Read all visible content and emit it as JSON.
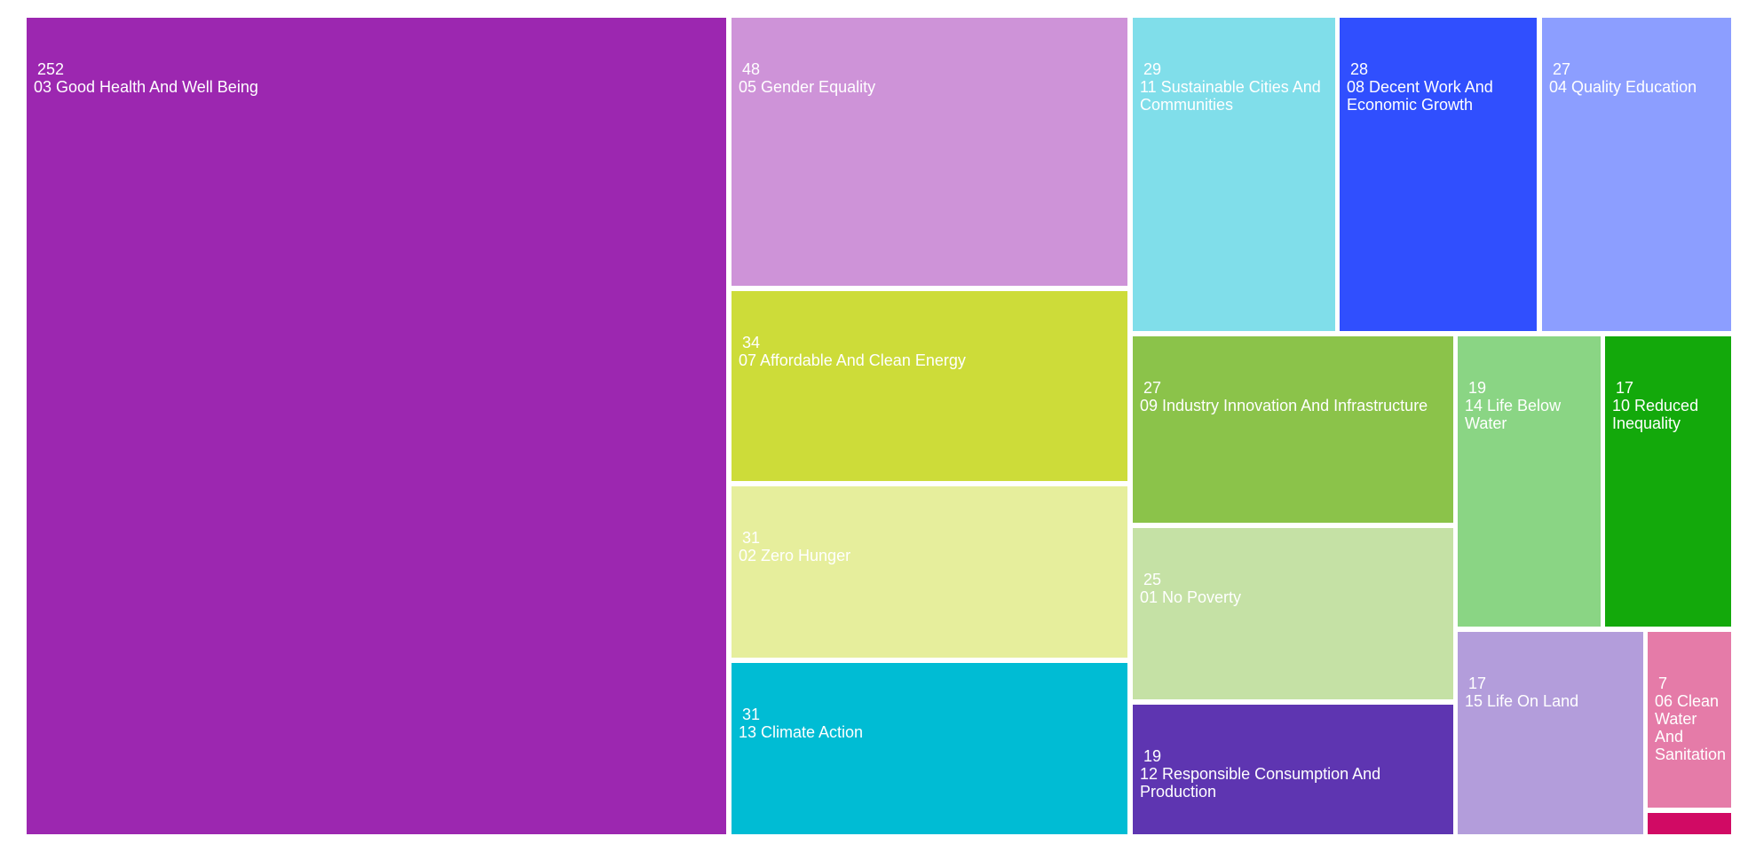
{
  "chart_data": {
    "type": "treemap",
    "items": [
      {
        "name": "03 Good Health And Well Being",
        "value": 252,
        "color": "#9c27b0"
      },
      {
        "name": "05 Gender Equality",
        "value": 48,
        "color": "#ce93d8"
      },
      {
        "name": "07 Affordable And Clean Energy",
        "value": 34,
        "color": "#cddc39"
      },
      {
        "name": "02 Zero Hunger",
        "value": 31,
        "color": "#e6ee9c"
      },
      {
        "name": "13 Climate Action",
        "value": 31,
        "color": "#00bcd4"
      },
      {
        "name": "11 Sustainable Cities And Communities",
        "value": 29,
        "color": "#80deea"
      },
      {
        "name": "08 Decent Work And Economic Growth",
        "value": 28,
        "color": "#304ffe"
      },
      {
        "name": "04 Quality Education",
        "value": 27,
        "color": "#8c9eff"
      },
      {
        "name": "09 Industry Innovation And Infrastructure",
        "value": 27,
        "color": "#8bc34a"
      },
      {
        "name": "01 No Poverty",
        "value": 25,
        "color": "#c5e1a5"
      },
      {
        "name": "12 Responsible Consumption And Production",
        "value": 19,
        "color": "#5e35b1"
      },
      {
        "name": "14 Life Below Water",
        "value": 19,
        "color": "#8ad584"
      },
      {
        "name": "10 Reduced Inequality",
        "value": 17,
        "color": "#13a90b"
      },
      {
        "name": "15 Life On Land",
        "value": 17,
        "color": "#b39ddb"
      },
      {
        "name": "06 Clean Water And Sanitation",
        "value": 7,
        "color": "#e57ba8"
      },
      {
        "name": "",
        "value": 1,
        "color": "#d10a64"
      }
    ]
  }
}
